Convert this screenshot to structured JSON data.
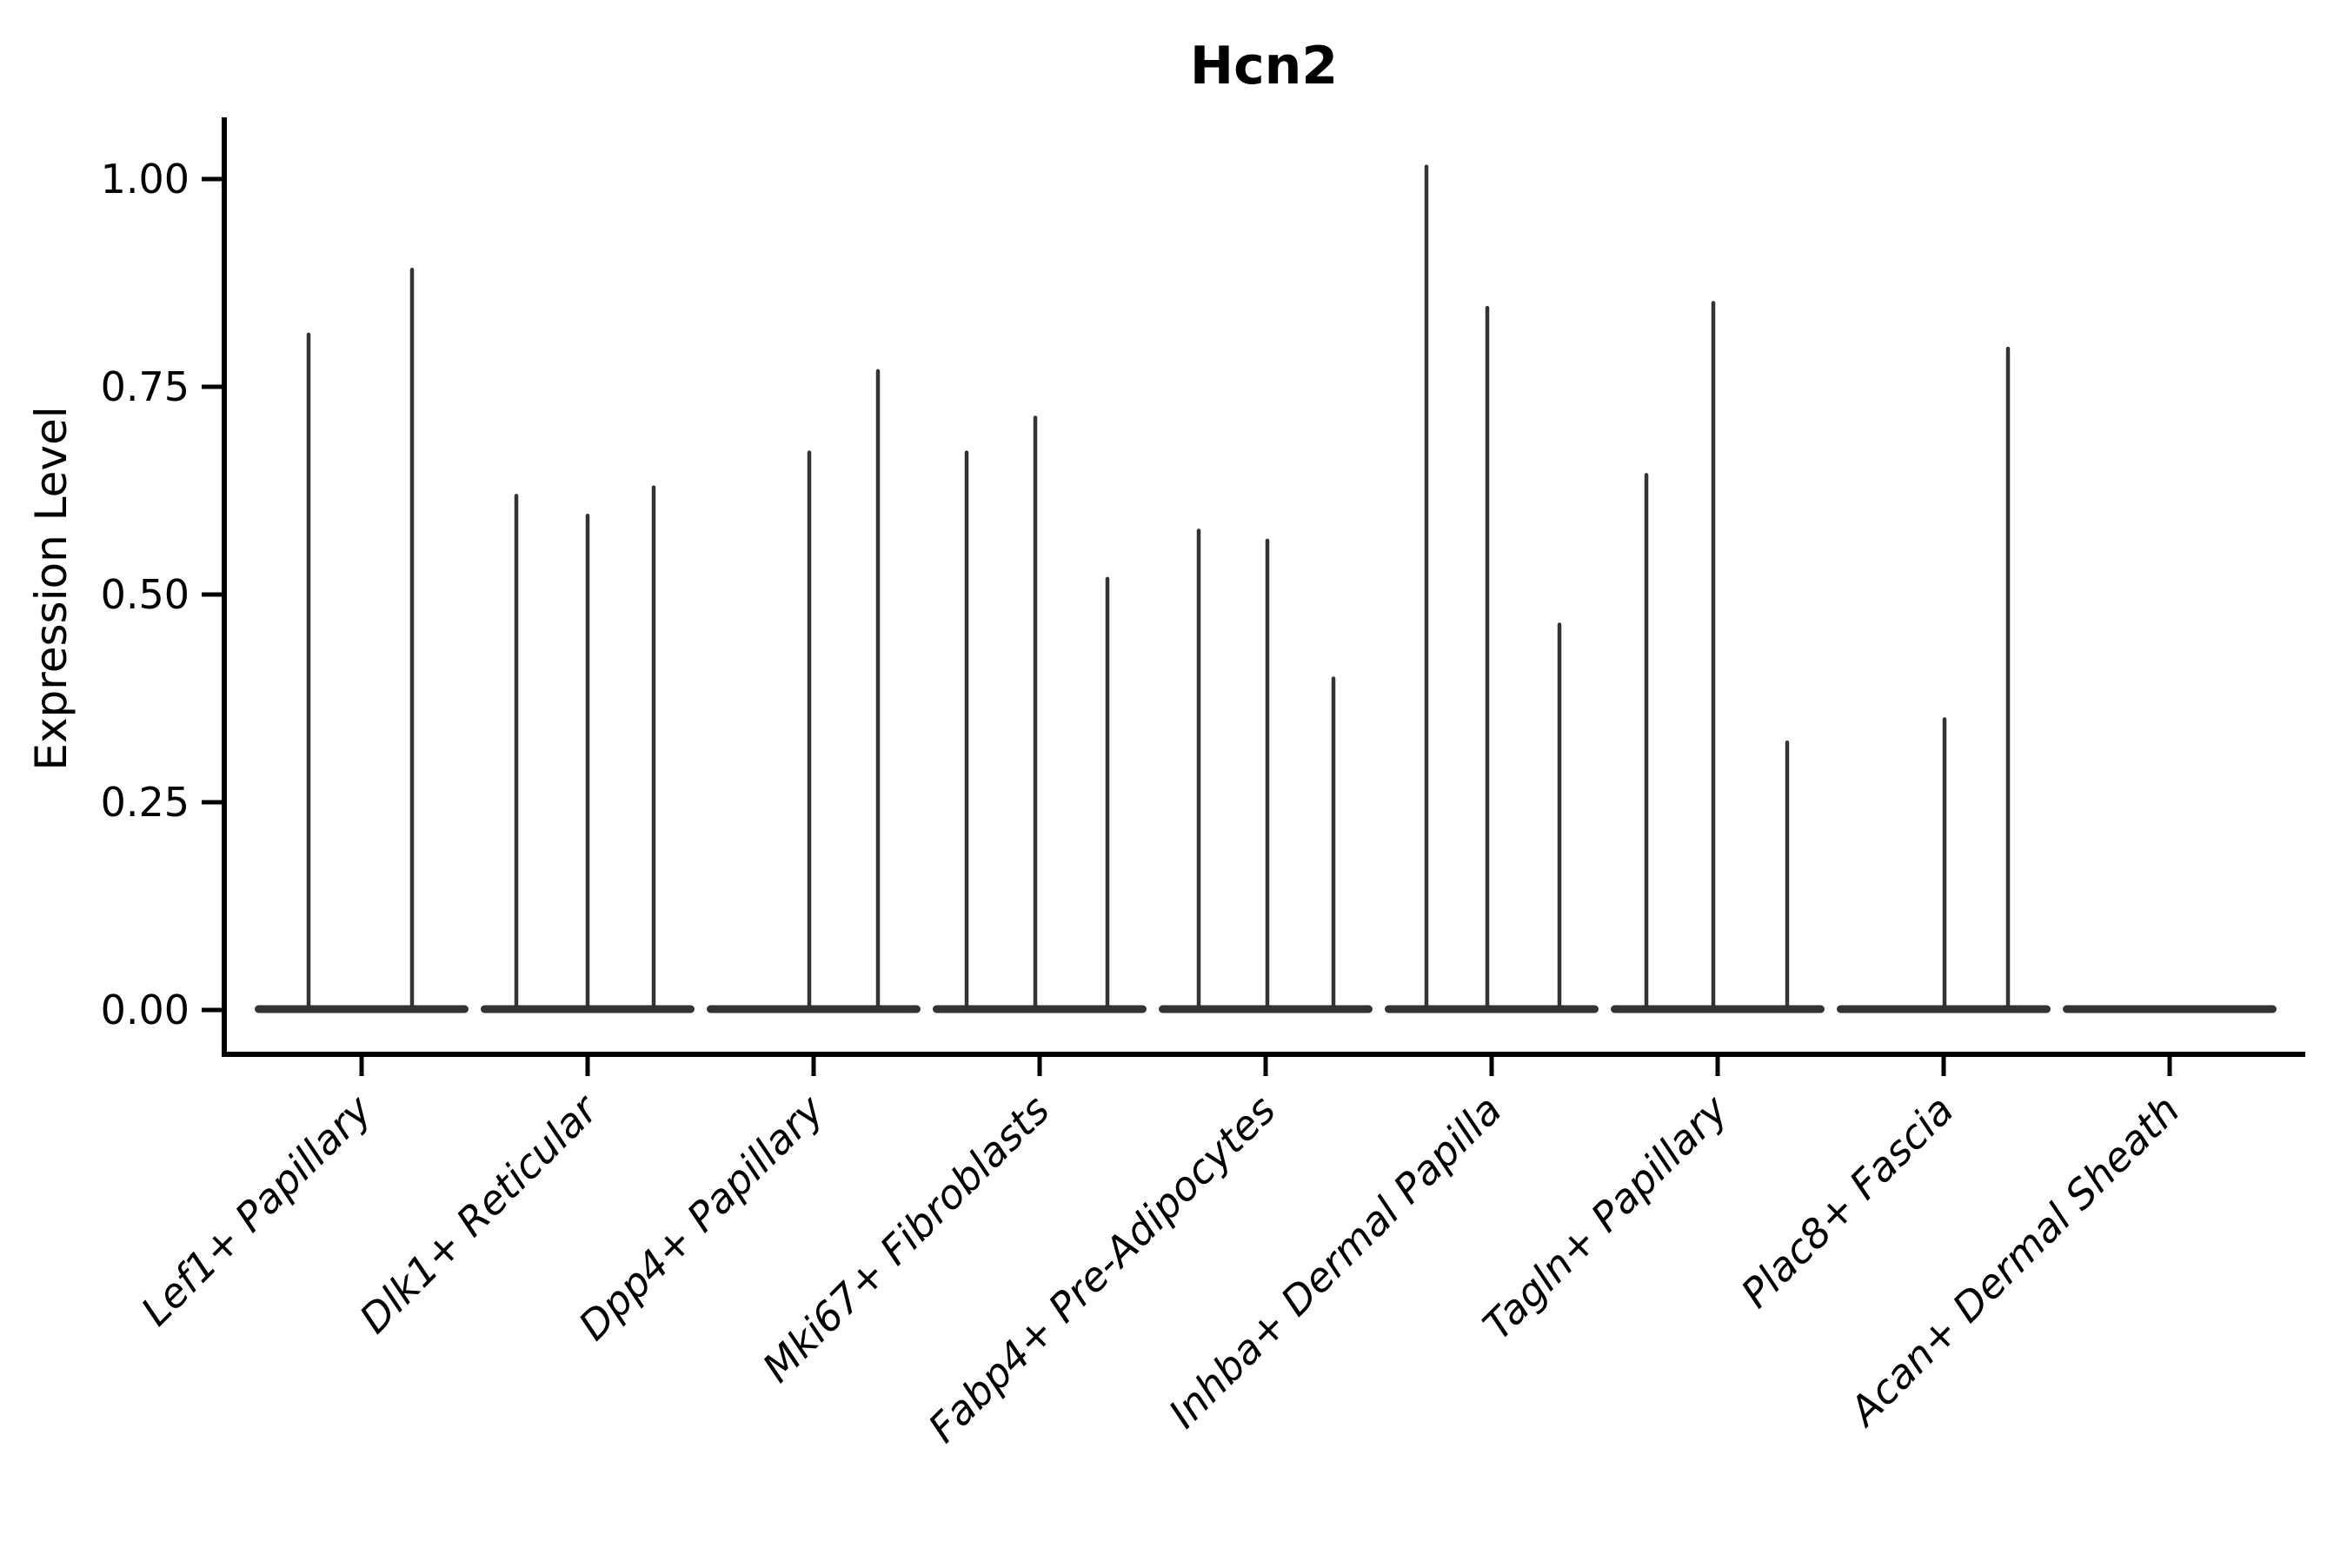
{
  "title": "Hcn2",
  "y_axis": {
    "label": "Expression Level",
    "tick_labels": [
      "0.00",
      "0.25",
      "0.50",
      "0.75",
      "1.00"
    ]
  },
  "x_axis": {
    "categories": [
      "Lef1+ Papillary",
      "Dlk1+ Reticular",
      "Dpp4+ Papillary",
      "Mki67+ Fibroblasts",
      "Fabp4+ Pre-Adipocytes",
      "Inhba+ Dermal Papilla",
      "Tagln+ Papillary",
      "Plac8+ Fascia",
      "Acan+ Dermal Sheath"
    ]
  },
  "chart_data": {
    "type": "violin",
    "title": "Hcn2",
    "xlabel": "",
    "ylabel": "Expression Level",
    "ylim": [
      -0.055,
      1.07
    ],
    "grid": false,
    "legend_position": "none",
    "ytick_values": [
      0,
      0.25,
      0.5,
      0.75,
      1.0
    ],
    "ytick_labels": [
      "0.00",
      "0.25",
      "0.50",
      "0.75",
      "1.00"
    ],
    "categories": [
      "Lef1+ Papillary",
      "Dlk1+ Reticular",
      "Dpp4+ Papillary",
      "Mki67+ Fibroblasts",
      "Fabp4+ Pre-Adipocytes",
      "Inhba+ Dermal Papilla",
      "Tagln+ Papillary",
      "Plac8+ Fascia",
      "Acan+ Dermal Sheath"
    ],
    "line_color": "#333333",
    "axis_color": "#000000",
    "groups": [
      {
        "category": "Lef1+ Papillary",
        "spikes": [
          {
            "offset": -61,
            "value": 0.815
          },
          {
            "offset": 58,
            "value": 0.893
          }
        ]
      },
      {
        "category": "Dlk1+ Reticular",
        "spikes": [
          {
            "offset": -82,
            "value": 0.621
          },
          {
            "offset": 0,
            "value": 0.597
          },
          {
            "offset": 76,
            "value": 0.631
          }
        ]
      },
      {
        "category": "Dpp4+ Papillary",
        "spikes": [
          {
            "offset": -5,
            "value": 0.673
          },
          {
            "offset": 74,
            "value": 0.771
          }
        ]
      },
      {
        "category": "Mki67+ Fibroblasts",
        "spikes": [
          {
            "offset": -84,
            "value": 0.673
          },
          {
            "offset": -5,
            "value": 0.715
          },
          {
            "offset": 78,
            "value": 0.521
          }
        ]
      },
      {
        "category": "Fabp4+ Pre-Adipocytes",
        "spikes": [
          {
            "offset": -77,
            "value": 0.579
          },
          {
            "offset": 2,
            "value": 0.567
          },
          {
            "offset": 78,
            "value": 0.401
          }
        ]
      },
      {
        "category": "Inhba+ Dermal Papilla",
        "spikes": [
          {
            "offset": -75,
            "value": 1.017
          },
          {
            "offset": -5,
            "value": 0.847
          },
          {
            "offset": 78,
            "value": 0.466
          }
        ]
      },
      {
        "category": "Tagln+ Papillary",
        "spikes": [
          {
            "offset": -82,
            "value": 0.646
          },
          {
            "offset": -5,
            "value": 0.853
          },
          {
            "offset": 80,
            "value": 0.324
          }
        ]
      },
      {
        "category": "Plac8+ Fascia",
        "spikes": [
          {
            "offset": 1,
            "value": 0.352
          },
          {
            "offset": 74,
            "value": 0.798
          }
        ]
      },
      {
        "category": "Acan+ Dermal Sheath",
        "spikes": []
      }
    ]
  }
}
